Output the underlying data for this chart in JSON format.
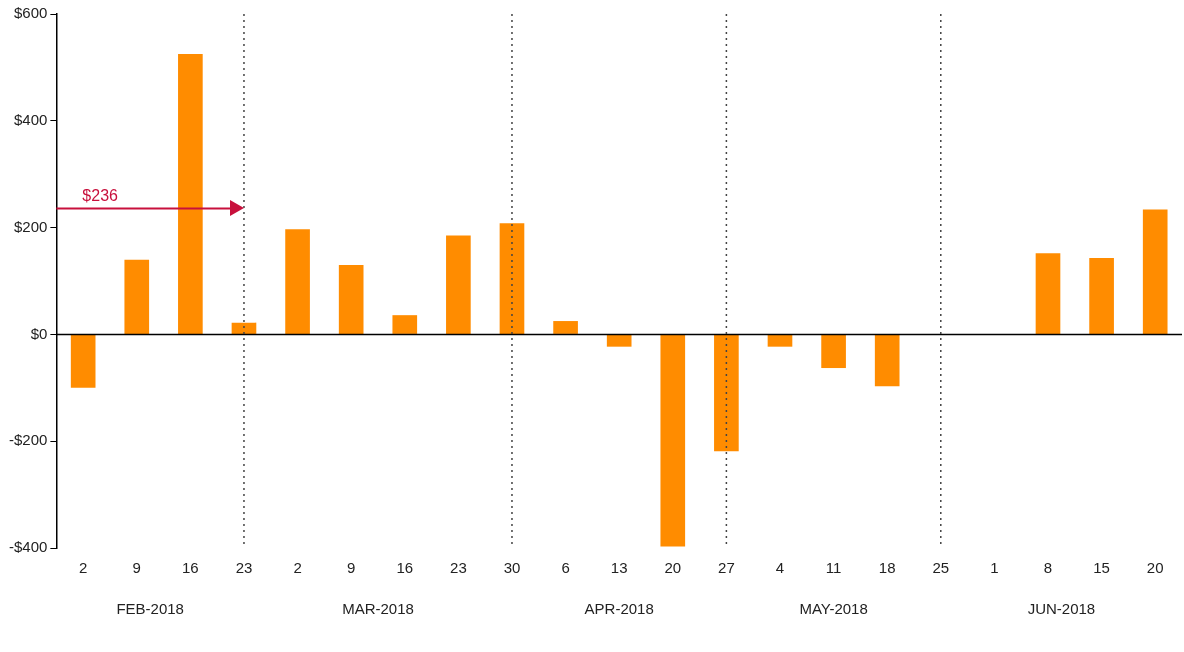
{
  "chart_data": {
    "type": "bar",
    "categories": [
      "2",
      "9",
      "16",
      "23",
      "2",
      "9",
      "16",
      "23",
      "30",
      "6",
      "13",
      "20",
      "27",
      "4",
      "11",
      "18",
      "25",
      "1",
      "8",
      "15",
      "20"
    ],
    "values": [
      -100,
      140,
      525,
      22,
      197,
      130,
      36,
      185,
      208,
      25,
      -23,
      -397,
      -219,
      -23,
      -63,
      -97,
      null,
      null,
      152,
      143,
      234
    ],
    "color": "#ff8c00",
    "ylim": [
      -400,
      600
    ],
    "yticks": [
      {
        "value": -400,
        "label": "-$400"
      },
      {
        "value": -200,
        "label": "-$200"
      },
      {
        "value": 0,
        "label": "$0"
      },
      {
        "value": 200,
        "label": "$200"
      },
      {
        "value": 400,
        "label": "$400"
      },
      {
        "value": 600,
        "label": "$600"
      }
    ],
    "grid": false,
    "legend": false,
    "ref_lines": [
      {
        "axis": "y",
        "value": 236,
        "label": "$236",
        "color": "#c8103c",
        "line_style": "solid"
      },
      {
        "axis": "x",
        "value": "23",
        "color": "#444444",
        "line_style": "dotted"
      },
      {
        "axis": "x",
        "value": "30",
        "color": "#444444",
        "line_style": "dotted"
      },
      {
        "axis": "x",
        "value": "27",
        "color": "#444444",
        "line_style": "dotted"
      },
      {
        "axis": "x",
        "value": "25",
        "color": "#444444",
        "line_style": "dotted"
      }
    ],
    "annotations": [
      "FEB-2018",
      "MAR-2018",
      "APR-2018",
      "MAY-2018",
      "JUN-2018"
    ]
  }
}
